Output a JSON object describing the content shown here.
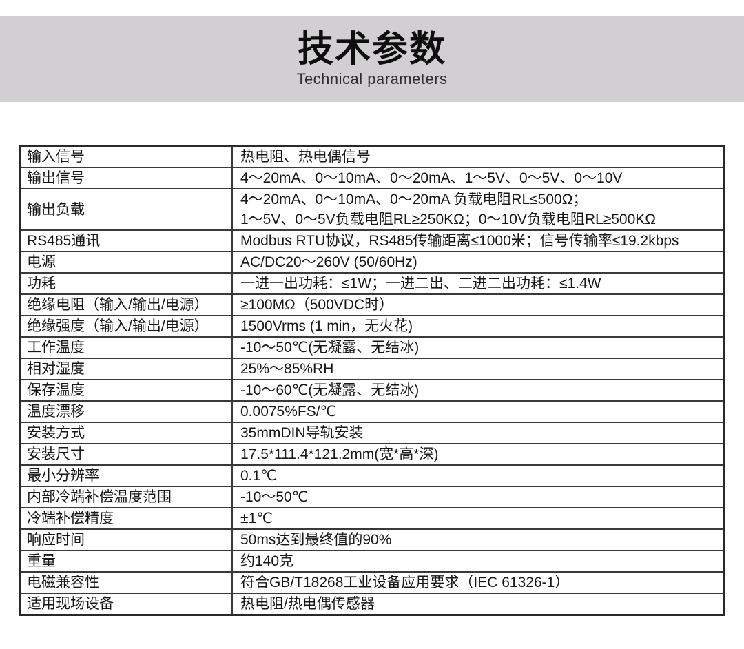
{
  "header": {
    "title": "技术参数",
    "subtitle": "Technical parameters",
    "band_color": "#d1cfd1"
  },
  "table": {
    "rows": [
      {
        "label": "输入信号",
        "value": "热电阻、热电偶信号"
      },
      {
        "label": "输出信号",
        "value": "4～20mA、0～10mA、0～20mA、1～5V、0～5V、0～10V"
      },
      {
        "label": "输出负载",
        "value": "4～20mA、0～10mA、0～20mA 负载电阻RL≤500Ω；\n1～5V、0～5V负载电阻RL≥250KΩ；0～10V负载电阻RL≥500KΩ"
      },
      {
        "label": "RS485通讯",
        "value": "Modbus RTU协议，RS485传输距离≤1000米；信号传输率≤19.2kbps"
      },
      {
        "label": "电源",
        "value": "AC/DC20～260V (50/60Hz)"
      },
      {
        "label": "功耗",
        "value": "一进一出功耗：≤1W；一进二出、二进二出功耗：≤1.4W"
      },
      {
        "label": "绝缘电阻（输入/输出/电源）",
        "value": "≥100MΩ（500VDC时）"
      },
      {
        "label": "绝缘强度（输入/输出/电源）",
        "value": "1500Vrms (1 min，无火花)"
      },
      {
        "label": "工作温度",
        "value": "-10～50℃(无凝露、无结冰)"
      },
      {
        "label": "相对湿度",
        "value": "25%～85%RH"
      },
      {
        "label": "保存温度",
        "value": "-10～60℃(无凝露、无结冰)"
      },
      {
        "label": "温度漂移",
        "value": "0.0075%FS/℃"
      },
      {
        "label": "安装方式",
        "value": "35mmDIN导轨安装"
      },
      {
        "label": "安装尺寸",
        "value": "17.5*111.4*121.2mm(宽*高*深)"
      },
      {
        "label": "最小分辨率",
        "value": "0.1℃"
      },
      {
        "label": "内部冷端补偿温度范围",
        "value": "-10～50℃"
      },
      {
        "label": "冷端补偿精度",
        "value": "±1℃"
      },
      {
        "label": "响应时间",
        "value": "50ms达到最终值的90%"
      },
      {
        "label": "重量",
        "value": "约140克"
      },
      {
        "label": "电磁兼容性",
        "value": "符合GB/T18268工业设备应用要求（IEC 61326-1）"
      },
      {
        "label": "适用现场设备",
        "value": "热电阻/热电偶传感器"
      }
    ]
  }
}
